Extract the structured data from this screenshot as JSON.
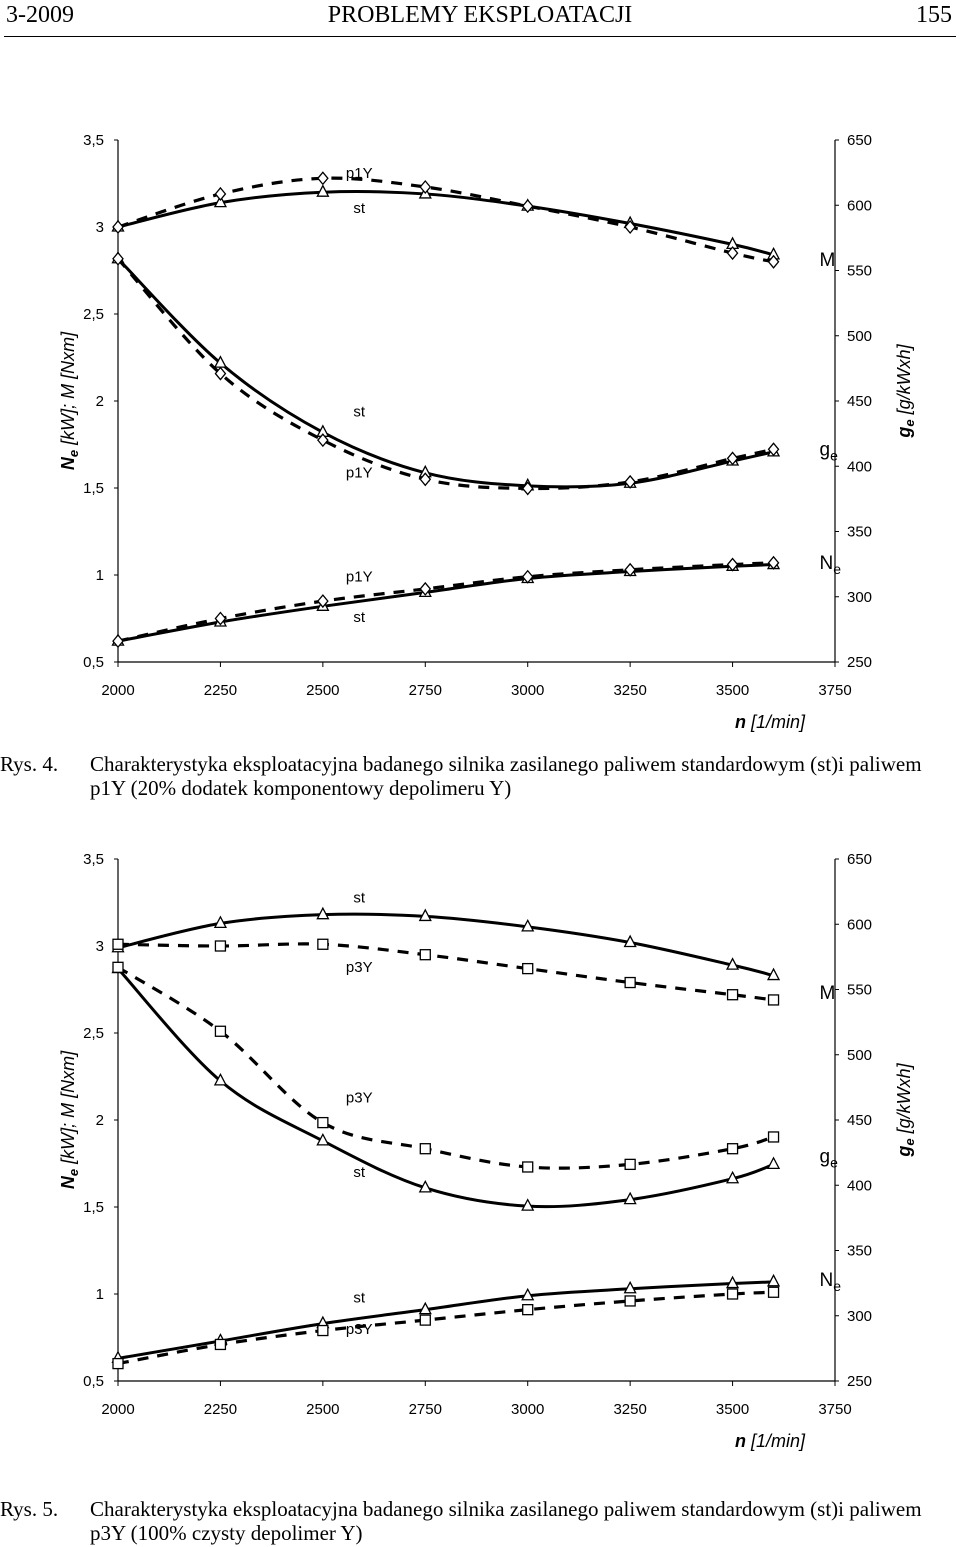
{
  "header": {
    "left": "3-2009",
    "center": "PROBLEMY EKSPLOATACJI",
    "right": "155"
  },
  "figures": [
    {
      "caption_label": "Rys. 4.",
      "caption_text": "Charakterystyka eksploatacyjna badanego silnika zasilanego paliwem standardowym (st)i paliwem p1Y (20% dodatek komponentowy depolimeru Y)",
      "chart_data": {
        "type": "line",
        "x_label_main": "n",
        "x_label_unit": "[1/min]",
        "y_left_label_main": "N",
        "y_left_label_sub": "e",
        "y_left_label_rest": " [kW]; M [Nxm]",
        "y_right_label_main": "g",
        "y_right_label_sub": "e",
        "y_right_label_rest": " [g/kWxh]",
        "xlim": [
          2000,
          3750
        ],
        "x_ticks": [
          "2000",
          "2250",
          "2500",
          "2750",
          "3000",
          "3250",
          "3500",
          "3750"
        ],
        "y_left_lim": [
          0.5,
          3.5
        ],
        "y_left_ticks": [
          "0,5",
          "1",
          "1,5",
          "2",
          "2,5",
          "3",
          "3,5"
        ],
        "y_right_lim": [
          250,
          650
        ],
        "y_right_ticks": [
          "250",
          "300",
          "350",
          "400",
          "450",
          "500",
          "550",
          "600",
          "650"
        ],
        "x": [
          2000,
          2250,
          2500,
          2750,
          3000,
          3250,
          3500,
          3600
        ],
        "series": [
          {
            "group": "M",
            "fuel": "st",
            "axis": "left",
            "marker": "triangle",
            "line": "solid",
            "values": [
              3.0,
              3.14,
              3.2,
              3.19,
              3.12,
              3.02,
              2.9,
              2.84
            ]
          },
          {
            "group": "M",
            "fuel": "p1Y",
            "axis": "left",
            "marker": "diamond",
            "line": "dashed",
            "values": [
              3.0,
              3.19,
              3.28,
              3.23,
              3.12,
              3.0,
              2.85,
              2.8
            ]
          },
          {
            "group": "ge",
            "fuel": "st",
            "axis": "right",
            "marker": "triangle",
            "line": "solid",
            "values": [
              559,
              479,
              426,
              395,
              385,
              387,
              404,
              411
            ]
          },
          {
            "group": "ge",
            "fuel": "p1Y",
            "axis": "right",
            "marker": "diamond",
            "line": "dashed",
            "values": [
              559,
              471,
              420,
              390,
              383,
              388,
              406,
              413
            ]
          },
          {
            "group": "Ne",
            "fuel": "st",
            "axis": "left",
            "marker": "triangle",
            "line": "solid",
            "values": [
              0.62,
              0.73,
              0.82,
              0.9,
              0.98,
              1.02,
              1.05,
              1.06
            ]
          },
          {
            "group": "Ne",
            "fuel": "p1Y",
            "axis": "left",
            "marker": "diamond",
            "line": "dashed",
            "values": [
              0.62,
              0.75,
              0.85,
              0.92,
              0.99,
              1.03,
              1.06,
              1.07
            ]
          }
        ],
        "labels": [
          {
            "text": "p1Y",
            "x": 2540,
            "yl": 3.31
          },
          {
            "text": "st",
            "x": 2540,
            "yl": 3.11
          },
          {
            "text": "st",
            "x": 2540,
            "yl": 1.94
          },
          {
            "text": "p1Y",
            "x": 2540,
            "yl": 1.59
          },
          {
            "text": "p1Y",
            "x": 2540,
            "yl": 0.99
          },
          {
            "text": "st",
            "x": 2540,
            "yl": 0.76
          }
        ],
        "curve_names": [
          {
            "main": "M",
            "sub": "",
            "x": 3700,
            "yl": 2.81
          },
          {
            "main": "g",
            "sub": "e",
            "x": 3700,
            "yl": 1.72
          },
          {
            "main": "N",
            "sub": "e",
            "x": 3700,
            "yl": 1.07
          }
        ]
      }
    },
    {
      "caption_label": "Rys. 5.",
      "caption_text": "Charakterystyka eksploatacyjna badanego silnika zasilanego paliwem standardowym (st)i paliwem p3Y (100% czysty depolimer Y)",
      "chart_data": {
        "type": "line",
        "x_label_main": "n",
        "x_label_unit": "[1/min]",
        "y_left_label_main": "N",
        "y_left_label_sub": "e",
        "y_left_label_rest": " [kW]; M [Nxm]",
        "y_right_label_main": "g",
        "y_right_label_sub": "e",
        "y_right_label_rest": " [g/kWxh]",
        "xlim": [
          2000,
          3750
        ],
        "x_ticks": [
          "2000",
          "2250",
          "2500",
          "2750",
          "3000",
          "3250",
          "3500",
          "3750"
        ],
        "y_left_lim": [
          0.5,
          3.5
        ],
        "y_left_ticks": [
          "0,5",
          "1",
          "1,5",
          "2",
          "2,5",
          "3",
          "3,5"
        ],
        "y_right_lim": [
          250,
          650
        ],
        "y_right_ticks": [
          "250",
          "300",
          "350",
          "400",
          "450",
          "500",
          "550",
          "600",
          "650"
        ],
        "x": [
          2000,
          2250,
          2500,
          2750,
          3000,
          3250,
          3500,
          3600
        ],
        "series": [
          {
            "group": "M",
            "fuel": "st",
            "axis": "left",
            "marker": "triangle",
            "line": "solid",
            "values": [
              2.99,
              3.13,
              3.18,
              3.17,
              3.11,
              3.02,
              2.89,
              2.83
            ]
          },
          {
            "group": "M",
            "fuel": "p3Y",
            "axis": "left",
            "marker": "square",
            "line": "dashed",
            "values": [
              3.01,
              3.0,
              3.01,
              2.95,
              2.87,
              2.79,
              2.72,
              2.69
            ]
          },
          {
            "group": "ge",
            "fuel": "st",
            "axis": "right",
            "marker": "triangle",
            "line": "solid",
            "values": [
              566,
              480,
              434,
              398,
              384,
              389,
              405,
              416
            ]
          },
          {
            "group": "ge",
            "fuel": "p3Y",
            "axis": "right",
            "marker": "square",
            "line": "dashed",
            "values": [
              567,
              518,
              448,
              428,
              414,
              416,
              428,
              437
            ]
          },
          {
            "group": "Ne",
            "fuel": "st",
            "axis": "left",
            "marker": "triangle",
            "line": "solid",
            "values": [
              0.63,
              0.73,
              0.83,
              0.91,
              0.99,
              1.03,
              1.06,
              1.07
            ]
          },
          {
            "group": "Ne",
            "fuel": "p3Y",
            "axis": "left",
            "marker": "square",
            "line": "dashed",
            "values": [
              0.6,
              0.71,
              0.79,
              0.85,
              0.91,
              0.96,
              1.0,
              1.01
            ]
          }
        ],
        "labels": [
          {
            "text": "st",
            "x": 2540,
            "yl": 3.28
          },
          {
            "text": "p3Y",
            "x": 2540,
            "yl": 2.88
          },
          {
            "text": "p3Y",
            "x": 2540,
            "yl": 2.13
          },
          {
            "text": "st",
            "x": 2540,
            "yl": 1.7
          },
          {
            "text": "st",
            "x": 2540,
            "yl": 0.98
          },
          {
            "text": "p3Y",
            "x": 2540,
            "yl": 0.8
          }
        ],
        "curve_names": [
          {
            "main": "M",
            "sub": "",
            "x": 3700,
            "yl": 2.73
          },
          {
            "main": "g",
            "sub": "e",
            "x": 3700,
            "yl": 1.79
          },
          {
            "main": "N",
            "sub": "e",
            "x": 3700,
            "yl": 1.08
          }
        ]
      }
    }
  ]
}
